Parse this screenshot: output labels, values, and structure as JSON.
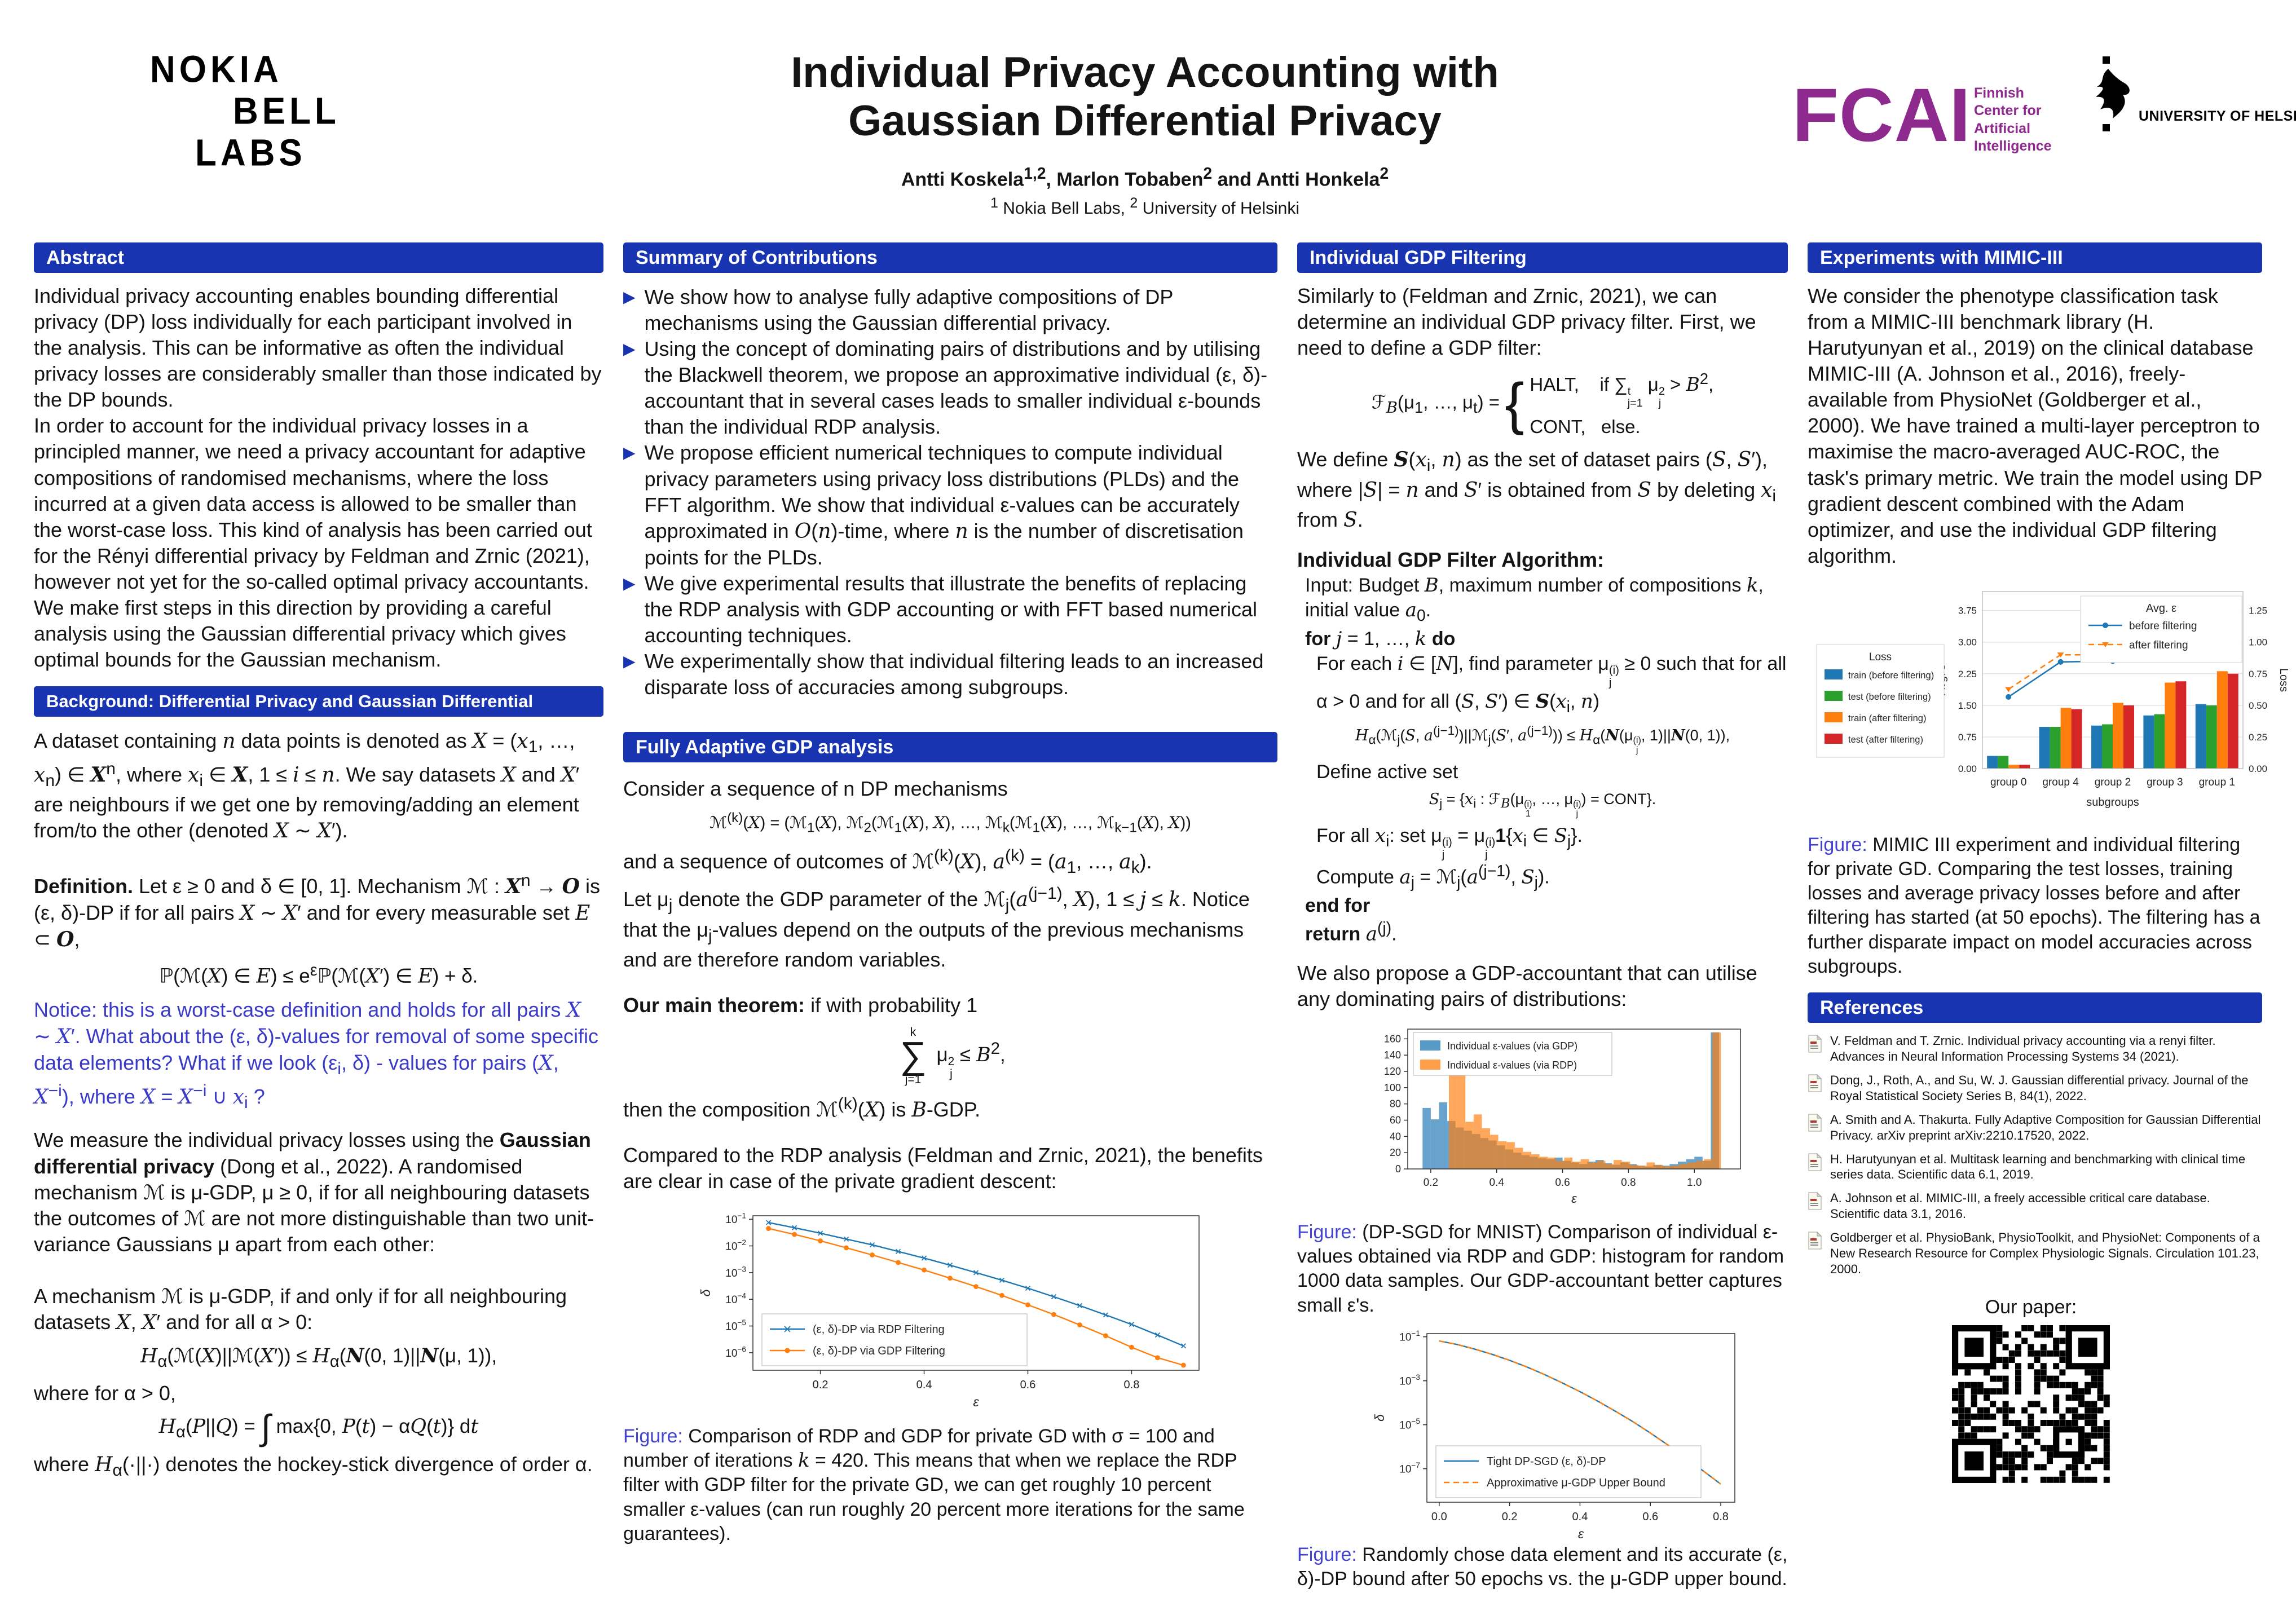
{
  "header": {
    "logo_nokia": {
      "line1": "NOKIA",
      "line2": "BELL",
      "line3": "LABS"
    },
    "title_line1": "Individual Privacy Accounting with",
    "title_line2": "Gaussian Differential Privacy",
    "authors_html": "Antti Koskela<sup>1,2</sup>, Marlon Tobaben<sup>2</sup> and Antti Honkela<sup>2</sup>",
    "affiliation_html": "<sup>1</sup> Nokia Bell Labs, <sup>2</sup> University of Helsinki",
    "logo_fcai": {
      "acronym": "FCAI",
      "tagline": [
        "Finnish",
        "Center for",
        "Artificial",
        "Intelligence"
      ],
      "color": "#8e2a8e"
    },
    "logo_uh": {
      "text": "UNIVERSITY OF HELSINKI"
    }
  },
  "colors": {
    "section_bar": "#1834b0",
    "accent_blue": "#4444d0",
    "notice_blue": "#3a3ac8",
    "mpl_blue": "#1f77b4",
    "mpl_orange": "#ff7f0e",
    "mpl_green": "#2ca02c",
    "mpl_red": "#d62728"
  },
  "sections": {
    "abstract": {
      "title": "Abstract",
      "p1": "Individual privacy accounting enables bounding differential privacy (DP) loss individually for each participant involved in the analysis. This can be informative as often the individual privacy losses are considerably smaller than those indicated by the DP bounds.",
      "p2": "In order to account for the individual privacy losses in a principled manner, we need a privacy accountant for adaptive compositions of randomised mechanisms, where the loss incurred at a given data access is allowed to be smaller than the worst-case loss. This kind of analysis has been carried out for the Rényi differential privacy by Feldman and Zrnic (2021), however not yet for the so-called optimal privacy accountants. We make first steps in this direction by providing a careful analysis using the Gaussian differential privacy which gives optimal bounds for the Gaussian mechanism."
    },
    "background": {
      "title": "Background: Differential Privacy and Gaussian Differential Privacy",
      "p1_html": "A dataset containing <i>n</i> data points is denoted as <i>X</i> = (<i>x</i><sub>1</sub>, …, <i>x</i><sub>n</sub>) ∈ <span class='scr'>X</span><sup>n</sup>, where <i>x</i><sub>i</sub> ∈ <span class='scr'>X</span>, 1 ≤ <i>i</i> ≤ <i>n</i>. We say datasets <i>X</i> and <i>X</i>′ are neighbours if we get one by removing/adding an element from/to the other (denoted <i>X</i> ∼ <i>X</i>′).",
      "def_html": "<b>Definition.</b> Let ε ≥ 0 and δ ∈ [0, 1]. Mechanism ℳ : <span class='scr'>X</span><sup>n</sup> → <span class='scr'>O</span> is (ε, δ)-DP if for all pairs <i>X</i> ∼ <i>X</i>′ and for every measurable set <i>E</i> ⊂ <span class='scr'>O</span>,",
      "f1_html": "ℙ(ℳ(<i>X</i>) ∈ <i>E</i>) ≤ e<sup>ε</sup>ℙ(ℳ(<i>X</i>′) ∈ <i>E</i>) + δ.",
      "notice_html": "Notice: this is a worst-case definition and holds for all pairs <i>X</i> ∼ <i>X</i>′. What about the (ε, δ)-values for removal of some specific data elements? What if we look (ε<sub>i</sub>, δ) - values for pairs (<i>X</i>, <i>X</i><sup>−i</sup>), where <i>X</i> = <i>X</i><sup>−i</sup> ∪ <i>x</i><sub>i</sub> ?",
      "p3_html": "We measure the individual privacy losses using the <b>Gaussian differential privacy</b> (Dong et al., 2022). A randomised mechanism ℳ is μ-GDP, μ ≥ 0, if for all neighbouring datasets the outcomes of ℳ are not more distinguishable than two unit-variance Gaussians μ apart from each other:",
      "p4_html": "A mechanism ℳ is μ-GDP, if and only if for all neighbouring datasets <i>X</i>, <i>X</i>′ and for all α > 0:",
      "f2_html": "<i>H</i><sub>α</sub>(ℳ(<i>X</i>)||ℳ(<i>X</i>′)) ≤ <i>H</i><sub>α</sub>(<span class='scr'>N</span>(0, 1)||<span class='scr'>N</span>(μ, 1)),",
      "where_html": "where for α > 0,",
      "f3_html": "<i>H</i><sub>α</sub>(<i>P</i>||<i>Q</i>) = <span class='int'>∫</span> max{0, <i>P</i>(<i>t</i>) − α<i>Q</i>(<i>t</i>)} d<i>t</i>",
      "p5_html": "where <i>H</i><sub>α</sub>(·||·) denotes the hockey-stick divergence of order α."
    },
    "contributions": {
      "title": "Summary of Contributions",
      "bullets": [
        "We show how to analyse fully adaptive compositions of DP mechanisms using the Gaussian differential privacy.",
        "Using the concept of dominating pairs of distributions and by utilising the Blackwell theorem, we propose an approximative individual (ε, δ)-accountant that in several cases leads to smaller individual ε-bounds than the individual RDP analysis.",
        "We propose efficient numerical techniques to compute individual privacy parameters using privacy loss distributions (PLDs) and the FFT algorithm. We show that individual ε-values can be accurately approximated in <i>O</i>(<i>n</i>)-time, where <i>n</i> is the number of discretisation points for the PLDs.",
        "We give experimental results that illustrate the benefits of replacing the RDP analysis with GDP accounting or with FFT based numerical accounting techniques.",
        "We experimentally show that individual filtering leads to an increased disparate loss of accuracies among subgroups."
      ]
    },
    "analysis": {
      "title": "Fully Adaptive GDP analysis",
      "p1": "Consider a sequence of n DP mechanisms",
      "f1_html": "ℳ<sup>(k)</sup>(<i>X</i>) = (ℳ<sub>1</sub>(<i>X</i>), ℳ<sub>2</sub>(ℳ<sub>1</sub>(<i>X</i>), <i>X</i>), …, ℳ<sub>k</sub>(ℳ<sub>1</sub>(<i>X</i>), …, ℳ<sub>k−1</sub>(<i>X</i>), <i>X</i>))",
      "p2_html": "and a sequence of outcomes of ℳ<sup>(k)</sup>(<i>X</i>), <i>a</i><sup>(k)</sup> = (<i>a</i><sub>1</sub>, …, <i>a</i><sub>k</sub>).",
      "p3_html": "Let μ<sub>j</sub> denote the GDP parameter of the ℳ<sub>j</sub>(<i>a</i><sup>(j−1)</sup>, <i>X</i>), 1 ≤ <i>j</i> ≤ <i>k</i>. Notice that the μ<sub>j</sub>-values depend on the outputs of the previous mechanisms and are therefore random variables.",
      "thm_html": "<b>Our main theorem:</b> if with probability 1",
      "f2_html": "<span class='sumstack'><span class='s-sup'>k</span><span class='s-sig'>∑</span><span class='s-sub'>j=1</span></span> μ<span class='ss'><sup>2</sup><sub>j</sub></span> ≤ <i>B</i><sup>2</sup>,",
      "p5_html": "then the composition ℳ<sup>(k)</sup>(<i>X</i>) is <i>B</i>-GDP.",
      "p6": "Compared to the RDP analysis (Feldman and Zrnic, 2021), the benefits are clear in case of the private gradient descent:",
      "caption_html": "<span class='figlabel'>Figure:</span> Comparison of RDP and GDP for private GD with σ = 100 and number of iterations <i>k</i> = 420. This means that when we replace the RDP filter with GDP filter for the private GD, we can get roughly 10 percent smaller ε-values (can run roughly 20 percent more iterations for the same guarantees)."
    },
    "filtering": {
      "title": "Individual GDP Filtering",
      "p1": "Similarly to (Feldman and Zrnic, 2021), we can determine an individual GDP privacy filter. First, we need to define a GDP filter:",
      "f1_html": "ℱ<sub><i>B</i></sub>(μ<sub>1</sub>, …, μ<sub>t</sub>) = <span class='brace'>{</span><span class='cases'><span>HALT,&nbsp;&nbsp;&nbsp;&nbsp;if ∑<span class='ss'><sup>t</sup><sub>j=1</sub></span> μ<span class='ss'><sup>2</sup><sub>j</sub></span> &gt; <i>B</i><sup>2</sup>,</span><span>CONT,&nbsp;&nbsp;&nbsp;else.</span></span>",
      "p2_html": "We define <span class='scr'>S</span>(<i>x</i><sub>i</sub>, <i>n</i>) as the set of dataset pairs (<i>S</i>, <i>S</i>′), where |<i>S</i>| = <i>n</i> and <i>S</i>′ is obtained from <i>S</i> by deleting <i>x</i><sub>i</sub> from <i>S</i>.",
      "alg_title": "Individual GDP Filter Algorithm:",
      "alg_input_html": "Input: Budget <i>B</i>, maximum number of compositions <i>k</i>, initial value <i>a</i><sub>0</sub>.",
      "alg_for_html": "<b>for</b> <i>j</i> = 1, …, <i>k</i> <b>do</b>",
      "alg_foreach_html": "For each <i>i</i> ∈ [<i>N</i>], find parameter μ<span class='ss'><sup>(i)</sup><sub>j</sub></span> ≥ 0 such that for all α &gt; 0 and for all (<i>S</i>, <i>S</i>′) ∈ <span class='scr'>S</span>(<i>x</i><sub>i</sub>, <i>n</i>)",
      "alg_f1_html": "<i>H</i><sub>α</sub>(ℳ<sub>j</sub>(<i>S</i>, <i>a</i><sup>(j−1)</sup>)||ℳ<sub>j</sub>(<i>S</i>′, <i>a</i><sup>(j−1)</sup>)) ≤ <i>H</i><sub>α</sub>(<span class='scr'>N</span>(μ<span class='ss'><sup>(i)</sup><sub>j</sub></span>, 1)||<span class='scr'>N</span>(0, 1)),",
      "alg_define": "Define active set",
      "alg_f2_html": "<i>S</i><sub>j</sub> = {<i>x</i><sub>i</sub> : ℱ<sub><i>B</i></sub>(μ<span class='ss'><sup>(i)</sup><sub>1</sub></span>, …, μ<span class='ss'><sup>(i)</sup><sub>j</sub></span>) = CONT}.",
      "alg_forall_html": "For all <i>x</i><sub>i</sub>: set μ<span class='ss'><sup>(i)</sup><sub>j</sub></span> = μ<span class='ss'><sup>(i)</sup><sub>j</sub></span><b>1</b>{<i>x</i><sub>i</sub> ∈ <i>S</i><sub>j</sub>}.",
      "alg_compute_html": "Compute <i>a</i><sub>j</sub> = ℳ<sub>j</sub>(<i>a</i><sup>(j−1)</sup>, <i>S</i><sub>j</sub>).",
      "alg_end_html": "<b>end for</b>",
      "alg_return_html": "<b>return</b> <i>a</i><sup>(j)</sup>.",
      "p3": "We also propose a GDP-accountant that can utilise any dominating pairs of distributions:",
      "caption_hist_html": "<span class='figlabel'>Figure:</span> (DP-SGD for MNIST) Comparison of individual ε-values obtained via RDP and GDP: histogram for random 1000 data samples. Our GDP-accountant better captures small ε's.",
      "caption_bound_html": "<span class='figlabel'>Figure:</span> Randomly chose data element and its accurate (ε, δ)-DP bound after 50 epochs vs. the μ-GDP upper bound."
    },
    "experiments": {
      "title": "Experiments with MIMIC-III",
      "p1": "We consider the phenotype classification task from a MIMIC-III benchmark library (H. Harutyunyan et al., 2019) on the clinical database MIMIC-III (A. Johnson et al., 2016), freely-available from PhysioNet (Goldberger et al., 2000). We have trained a multi-layer perceptron to maximise the macro-averaged AUC-ROC, the task's primary metric. We train the model using DP gradient descent combined with the Adam optimizer, and use the individual GDP filtering algorithm.",
      "caption_html": "<span class='figlabel'>Figure:</span> MIMIC III experiment and individual filtering for private GD. Comparing the test losses, training losses and average privacy losses before and after filtering has started (at 50 epochs). The filtering has a further disparate impact on model accuracies across subgroups."
    },
    "references": {
      "title": "References",
      "items": [
        "V. Feldman and T. Zrnic. Individual privacy accounting via a renyi filter. Advances in Neural Information Processing Systems 34 (2021).",
        "Dong, J., Roth, A., and Su, W. J. Gaussian differential privacy. Journal of the Royal Statistical Society Series B, 84(1), 2022.",
        "A. Smith and A. Thakurta. Fully Adaptive Composition for Gaussian Differential Privacy. arXiv preprint arXiv:2210.17520, 2022.",
        "H. Harutyunyan et al. Multitask learning and benchmarking with clinical time series data. Scientific data 6.1, 2019.",
        "A. Johnson et al. MIMIC-III, a freely accessible critical care database. Scientific data 3.1, 2016.",
        "Goldberger et al. PhysioBank, PhysioToolkit, and PhysioNet: Components of a New Research Resource for Complex Physiologic Signals. Circulation 101.23, 2000."
      ]
    },
    "paper": {
      "label": "Our paper:"
    }
  },
  "chart_data": [
    {
      "id": "rdp-vs-gdp-private-gd",
      "type": "line",
      "render": "line_log",
      "xlabel": "ε",
      "ylabel": "δ",
      "xlim": [
        0.07,
        0.93
      ],
      "ylim": [
        2.2e-07,
        0.135
      ],
      "xticks": [
        0.2,
        0.4,
        0.6,
        0.8
      ],
      "yticks_exp": [
        -1,
        -2,
        -3,
        -4,
        -5,
        -6
      ],
      "legend_pos": "lower-left",
      "series": [
        {
          "name": "(ε, δ)-DP via RDP Filtering",
          "color": "#1f77b4",
          "marker": "x",
          "dash": "",
          "x": [
            0.1,
            0.15,
            0.2,
            0.25,
            0.3,
            0.35,
            0.4,
            0.45,
            0.5,
            0.55,
            0.6,
            0.65,
            0.7,
            0.75,
            0.8,
            0.85,
            0.9
          ],
          "y": [
            0.075,
            0.048,
            0.03,
            0.018,
            0.011,
            0.0062,
            0.0035,
            0.0019,
            0.001,
            0.00052,
            0.00026,
            0.000125,
            5.8e-05,
            2.6e-05,
            1.15e-05,
            4.6e-06,
            1.8e-06
          ]
        },
        {
          "name": "(ε, δ)-DP via GDP Filtering",
          "color": "#ff7f0e",
          "marker": "o",
          "dash": "",
          "x": [
            0.1,
            0.15,
            0.2,
            0.25,
            0.3,
            0.35,
            0.4,
            0.45,
            0.5,
            0.55,
            0.6,
            0.65,
            0.7,
            0.75,
            0.8,
            0.85,
            0.9
          ],
          "y": [
            0.045,
            0.027,
            0.0155,
            0.0085,
            0.0046,
            0.0024,
            0.00125,
            0.00062,
            0.0003,
            0.00014,
            6.2e-05,
            2.7e-05,
            1.1e-05,
            4.3e-06,
            1.6e-06,
            6.5e-07,
            3.4e-07
          ]
        }
      ]
    },
    {
      "id": "individual-eps-histogram",
      "type": "bar",
      "render": "hist",
      "xlabel": "ε",
      "xlim": [
        0.13,
        1.14
      ],
      "ylim": [
        0,
        172
      ],
      "xticks": [
        0.2,
        0.4,
        0.6,
        0.8,
        1.0
      ],
      "yticks": [
        0,
        20,
        40,
        60,
        80,
        100,
        120,
        140,
        160
      ],
      "bin_width": 0.025,
      "series": [
        {
          "name": "Individual ε-values (via GDP)",
          "color": "#1f77b4",
          "start": 0.175,
          "heights": [
            75,
            61,
            82,
            59,
            51,
            47,
            43,
            38,
            35,
            29,
            24,
            20,
            17,
            15,
            13,
            12,
            14,
            10,
            8,
            6,
            9,
            11,
            7,
            5,
            8,
            6,
            4,
            3,
            5,
            4,
            6,
            9,
            12,
            15,
            10,
            168
          ]
        },
        {
          "name": "Individual ε-values (via RDP)",
          "color": "#ff7f0e",
          "start": 0.255,
          "heights": [
            131,
            126,
            58,
            67,
            50,
            42,
            34,
            33,
            26,
            21,
            18,
            15,
            14,
            10,
            14,
            9,
            12,
            8,
            10,
            6,
            11,
            9,
            5,
            4,
            8,
            5,
            3,
            4,
            6,
            8,
            10,
            12,
            168
          ]
        }
      ]
    },
    {
      "id": "tight-vs-mu-gdp-bound",
      "type": "line",
      "render": "line_log",
      "xlabel": "ε",
      "ylabel": "δ",
      "xlim": [
        -0.035,
        0.84
      ],
      "ylim": [
        3e-09,
        0.14
      ],
      "xticks": [
        0.0,
        0.2,
        0.4,
        0.6,
        0.8
      ],
      "yticks_exp": [
        -1,
        -3,
        -5,
        -7
      ],
      "legend_pos": "lower-left",
      "series": [
        {
          "name": "Tight DP-SGD (ε, δ)-DP",
          "color": "#1f77b4",
          "marker": "none",
          "dash": "",
          "x": [
            0.0,
            0.05,
            0.1,
            0.15,
            0.2,
            0.25,
            0.3,
            0.35,
            0.4,
            0.45,
            0.5,
            0.55,
            0.6,
            0.65,
            0.7,
            0.75,
            0.8
          ],
          "y": [
            0.065,
            0.045,
            0.028,
            0.016,
            0.0085,
            0.0042,
            0.0019,
            0.0008,
            0.00032,
            0.00012,
            4.2e-05,
            1.4e-05,
            4.2e-06,
            1.2e-06,
            3.2e-07,
            8e-08,
            2e-08
          ]
        },
        {
          "name": "Approximative μ-GDP Upper Bound",
          "color": "#ff7f0e",
          "marker": "none",
          "dash": "10 7",
          "x": [
            0.0,
            0.05,
            0.1,
            0.15,
            0.2,
            0.25,
            0.3,
            0.35,
            0.4,
            0.45,
            0.5,
            0.55,
            0.6,
            0.65,
            0.7,
            0.75,
            0.8
          ],
          "y": [
            0.065,
            0.045,
            0.028,
            0.016,
            0.0085,
            0.0042,
            0.0019,
            0.0008,
            0.00032,
            0.00012,
            4.2e-05,
            1.4e-05,
            4.2e-06,
            1.2e-06,
            3.2e-07,
            8e-08,
            2e-08
          ]
        }
      ]
    },
    {
      "id": "mimic-subgroups",
      "type": "bar+line",
      "render": "dual",
      "categories": [
        "group 0",
        "group 4",
        "group 2",
        "group 3",
        "group 1"
      ],
      "xlabel": "subgroups",
      "left_ylabel": "Avg. ε",
      "left_ticks": [
        0.0,
        0.75,
        1.5,
        2.25,
        3.0,
        3.75
      ],
      "left_ylim": [
        0,
        4.2
      ],
      "right_ylabel": "Loss",
      "right_ticks": [
        0.0,
        0.25,
        0.5,
        0.75,
        1.0,
        1.25
      ],
      "right_ylim": [
        0,
        1.4
      ],
      "bar_legend_title": "Loss",
      "bar_series": [
        {
          "name": "train (before filtering)",
          "color": "#1f77b4",
          "values": [
            0.1,
            0.33,
            0.34,
            0.42,
            0.51
          ]
        },
        {
          "name": "test (before filtering)",
          "color": "#2ca02c",
          "values": [
            0.1,
            0.33,
            0.35,
            0.43,
            0.5
          ]
        },
        {
          "name": "train (after filtering)",
          "color": "#ff7f0e",
          "values": [
            0.03,
            0.48,
            0.52,
            0.68,
            0.77
          ]
        },
        {
          "name": "test (after filtering)",
          "color": "#d62728",
          "values": [
            0.03,
            0.47,
            0.5,
            0.69,
            0.75
          ]
        }
      ],
      "line_legend_title": "Avg. ε",
      "line_series": [
        {
          "name": "before filtering",
          "color": "#1f77b4",
          "marker": "o",
          "dash": "",
          "values": [
            1.7,
            2.53,
            2.55,
            2.67,
            2.7
          ]
        },
        {
          "name": "after filtering",
          "color": "#ff7f0e",
          "marker": "v",
          "dash": "10 7",
          "values": [
            1.88,
            2.7,
            2.7,
            2.75,
            2.76
          ]
        }
      ]
    }
  ]
}
